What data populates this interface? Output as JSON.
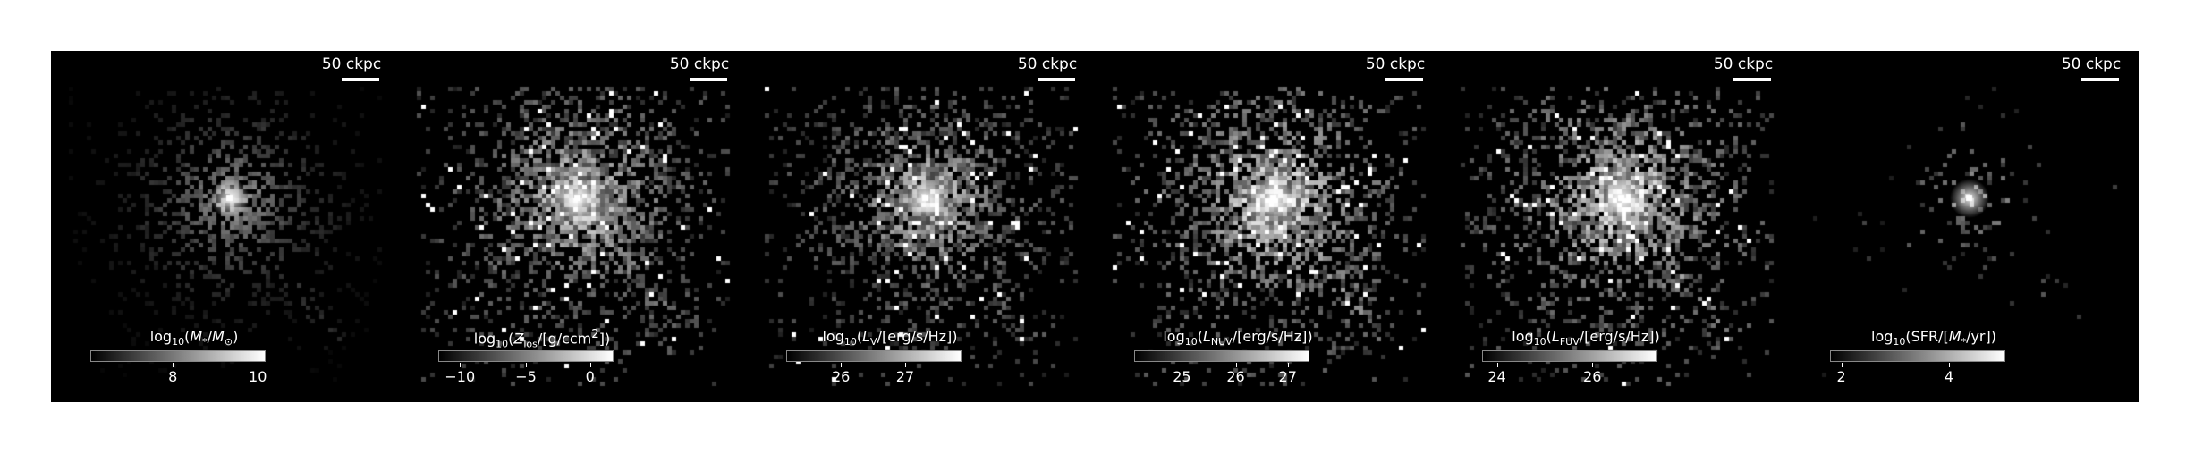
{
  "scale_label": "50 ckpc",
  "panels": [
    {
      "id": "mstar",
      "cbar": {
        "pre": "log",
        "sub10": "10",
        "body_html": "(<span class='it'>M</span><sub>*</sub>/<span class='it'>M</span><sub>⊙</sub>)"
      },
      "ticks": [
        {
          "label": "8",
          "frac": 0.47
        },
        {
          "label": "10",
          "frac": 0.96
        }
      ],
      "image": {
        "style": "smooth",
        "core": 1.0,
        "density": 0.55,
        "brightness": 0.55
      }
    },
    {
      "id": "zlos",
      "cbar": {
        "pre": "log",
        "sub10": "10",
        "body_html": "(<span class='it'>Z</span><sub>los</sub>/[g/ccm<sup>2</sup>])"
      },
      "ticks": [
        {
          "label": "−10",
          "frac": 0.12
        },
        {
          "label": "−5",
          "frac": 0.5
        },
        {
          "label": "0",
          "frac": 0.87
        }
      ],
      "image": {
        "style": "pixel",
        "core": 1.0,
        "density": 0.95,
        "brightness": 0.75
      }
    },
    {
      "id": "lv",
      "cbar": {
        "pre": "log",
        "sub10": "10",
        "body_html": "(<span class='it'>L</span><sub>V</sub>/[erg/s/Hz])"
      },
      "ticks": [
        {
          "label": "26",
          "frac": 0.31
        },
        {
          "label": "27",
          "frac": 0.68
        }
      ],
      "image": {
        "style": "pixel",
        "core": 1.0,
        "density": 0.85,
        "brightness": 0.7
      }
    },
    {
      "id": "lnuv",
      "cbar": {
        "pre": "log",
        "sub10": "10",
        "body_html": "(<span class='it'>L</span><sub>NUV</sub>/[erg/s/Hz])"
      },
      "ticks": [
        {
          "label": "25",
          "frac": 0.27
        },
        {
          "label": "26",
          "frac": 0.58
        },
        {
          "label": "27",
          "frac": 0.88
        }
      ],
      "image": {
        "style": "pixel",
        "core": 1.0,
        "density": 0.9,
        "brightness": 0.85
      }
    },
    {
      "id": "lfuv",
      "cbar": {
        "pre": "log",
        "sub10": "10",
        "body_html": "(<span class='it'>L</span><sub>FUV</sub>/[erg/s/Hz])"
      },
      "ticks": [
        {
          "label": "24",
          "frac": 0.08
        },
        {
          "label": "26",
          "frac": 0.63
        }
      ],
      "image": {
        "style": "pixel",
        "core": 1.0,
        "density": 0.9,
        "brightness": 0.85
      }
    },
    {
      "id": "sfr",
      "cbar": {
        "pre": "log",
        "sub10": "10",
        "body_html": "(SFR/[<span class='it'>M</span><sub>*</sub>/yr])"
      },
      "ticks": [
        {
          "label": "2",
          "frac": 0.06
        },
        {
          "label": "4",
          "frac": 0.68
        }
      ],
      "image": {
        "style": "sparse",
        "core": 1.0,
        "density": 0.12,
        "brightness": 0.5
      }
    }
  ]
}
